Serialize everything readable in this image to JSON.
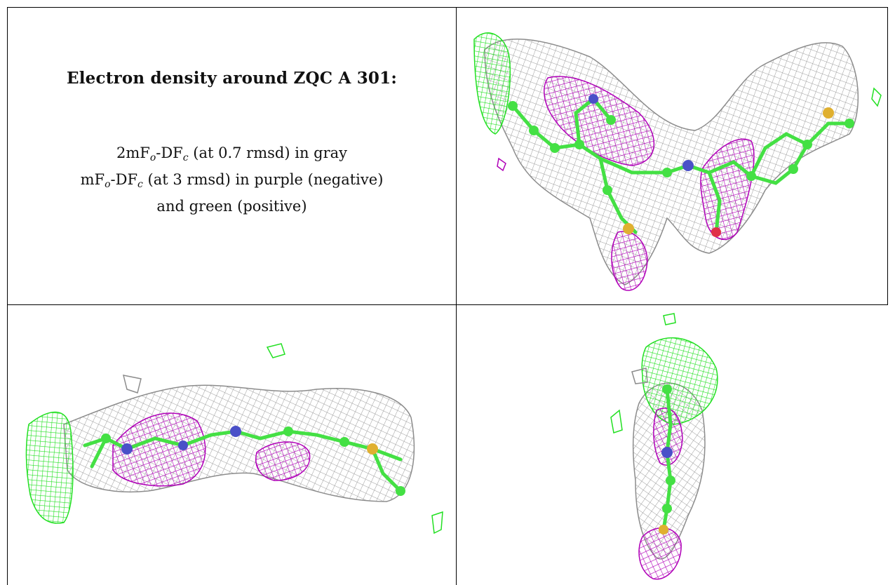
{
  "caption": {
    "title": "Electron density around ZQC A 301:",
    "line1": {
      "pre": "2mF",
      "sub1": "o",
      "mid": "-DF",
      "sub2": "c",
      "post": " (at 0.7 rmsd) in gray"
    },
    "line2": {
      "pre": "mF",
      "sub1": "o",
      "mid": "-DF",
      "sub2": "c",
      "post": " (at 3 rmsd) in purple (negative)"
    },
    "line3": "and green (positive)"
  },
  "colors": {
    "mesh_gray": "#8c8c8c",
    "mesh_purple": "#b000b8",
    "mesh_green": "#22e022",
    "atom_carbon": "#44e044",
    "atom_nitrogen": "#4a50c8",
    "atom_sulfur": "#e0b030",
    "atom_oxygen": "#e03048"
  }
}
